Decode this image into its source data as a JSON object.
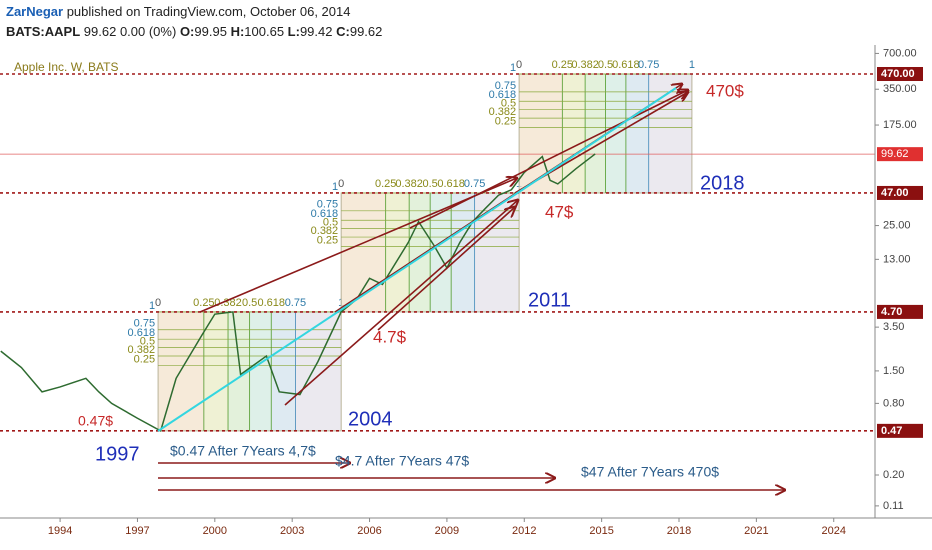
{
  "header": {
    "author": "ZarNegar",
    "published": "published on TradingView.com, October 06, 2014",
    "symbol": "BATS:AAPL",
    "price": 99.62,
    "change": "0.00 (0%)",
    "ohlc": [
      {
        "label": "O:",
        "value": 99.95
      },
      {
        "label": "H:",
        "value": 100.65
      },
      {
        "label": "L:",
        "value": 99.42
      },
      {
        "label": "C:",
        "value": 99.62
      }
    ]
  },
  "chart_data": {
    "type": "line",
    "title": "Apple Inc. W, BATS",
    "log_scale": true,
    "xlim": [
      1991.67,
      2025.6
    ],
    "xticks": [
      1994,
      1997,
      2000,
      2003,
      2006,
      2009,
      2012,
      2015,
      2018,
      2021,
      2024
    ],
    "ylim": [
      0.087,
      824
    ],
    "yticks": [
      {
        "value": 700,
        "label": "700.00"
      },
      {
        "value": 350,
        "label": "350.00"
      },
      {
        "value": 175,
        "label": "175.00"
      },
      {
        "value": 25,
        "label": "25.00"
      },
      {
        "value": 13,
        "label": "13.00"
      },
      {
        "value": 3.5,
        "label": "3.50"
      },
      {
        "value": 1.5,
        "label": "1.50"
      },
      {
        "value": 0.8,
        "label": "0.80"
      },
      {
        "value": 0.2,
        "label": "0.20"
      },
      {
        "value": 0.11,
        "label": "0.11"
      }
    ],
    "price_levels": [
      {
        "value": 470,
        "label": "470.00"
      },
      {
        "value": 47,
        "label": "47.00"
      },
      {
        "value": 4.7,
        "label": "4.70"
      },
      {
        "value": 0.47,
        "label": "0.47"
      }
    ],
    "last_price": {
      "value": 99.62,
      "label": "99.62"
    },
    "series": [
      {
        "color": "#2e6b30",
        "x": [
          1991.7,
          1992.5,
          1993.3,
          1994,
          1995,
          1995.5,
          1996,
          1997,
          1997.9,
          1998.5,
          1999.5,
          2000,
          2000.7,
          2001,
          2002,
          2002.5,
          2003.3,
          2004,
          2004.9,
          2005.5,
          2006,
          2006.5,
          2007.5,
          2007.9,
          2008.5,
          2009,
          2009.5,
          2010,
          2010.5,
          2011,
          2011.5,
          2012,
          2012.7,
          2013,
          2013.3,
          2014,
          2014.75
        ],
        "values": [
          2.2,
          1.6,
          1.0,
          1.1,
          1.3,
          1.0,
          0.8,
          0.6,
          0.47,
          1.3,
          3,
          4.5,
          4.7,
          1.4,
          2.0,
          1.0,
          0.95,
          1.8,
          4.7,
          6,
          9,
          8,
          18,
          27,
          17,
          11,
          18,
          27,
          35,
          45,
          50,
          70,
          95,
          60,
          56,
          75,
          100
        ]
      }
    ],
    "fib_levels": [
      0,
      0.25,
      0.382,
      0.5,
      0.618,
      0.75,
      1
    ],
    "fib_boxes": [
      {
        "x": [
          1997.8,
          2004.9
        ],
        "y": [
          0.47,
          4.7
        ]
      },
      {
        "x": [
          2004.9,
          2011.8
        ],
        "y": [
          4.7,
          47
        ]
      },
      {
        "x": [
          2011.8,
          2018.5
        ],
        "y": [
          47,
          470
        ]
      }
    ],
    "annotations": [
      {
        "text": "470$",
        "color": "#c62828"
      },
      {
        "text": "47$",
        "color": "#c62828"
      },
      {
        "text": "4.7$",
        "color": "#c62828"
      },
      {
        "text": "0.47$",
        "color": "#c62828"
      },
      {
        "text": "2018",
        "color": "#1f2fb8"
      },
      {
        "text": "2011",
        "color": "#1f2fb8"
      },
      {
        "text": "2004",
        "color": "#1f2fb8"
      },
      {
        "text": "1997",
        "color": "#1f2fb8"
      },
      {
        "text": "$0.47 After 7Years 4,7$",
        "color": "#2b5c8a"
      },
      {
        "text": "$4.7 After 7Years 47$",
        "color": "#2b5c8a"
      },
      {
        "text": "$47 After 7Years 470$",
        "color": "#2b5c8a"
      }
    ]
  }
}
